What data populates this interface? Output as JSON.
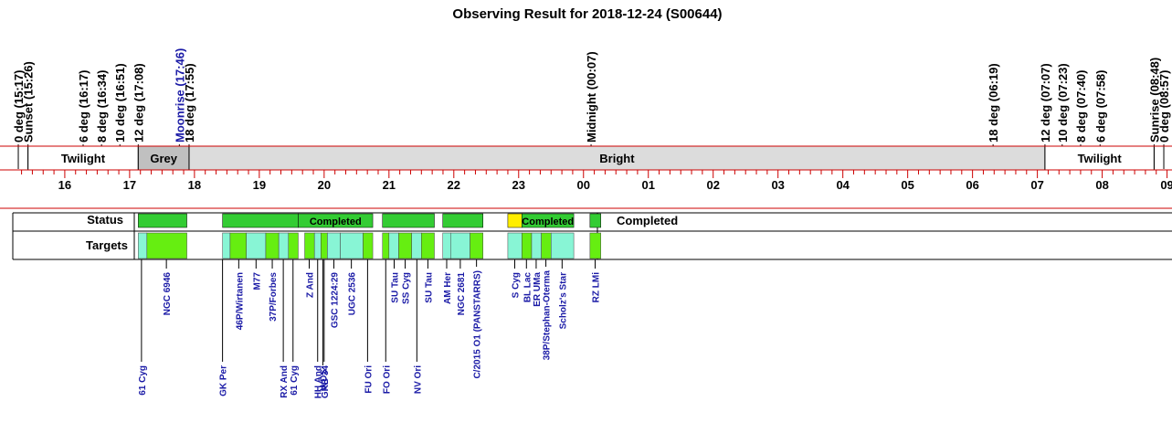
{
  "title": "Observing Result for 2018-12-24 (S00644)",
  "colors": {
    "bright": "#dcdcdc",
    "grey": "#c0c0c0",
    "twilight": "#ffffff",
    "axis_red": "#cc0000",
    "completed": "#33cc33",
    "target_a": "#88f5d5",
    "target_b": "#66ee11",
    "pending": "#ffee00",
    "moon_text": "#1a1aa6",
    "target_text": "#1a1aa6"
  },
  "events": [
    {
      "t": 15.283,
      "label": "0 deg (15:17)",
      "color": "black"
    },
    {
      "t": 15.433,
      "label": "Sunset (15:26)",
      "color": "black"
    },
    {
      "t": 16.283,
      "label": "6 deg (16:17)",
      "color": "black"
    },
    {
      "t": 16.567,
      "label": "8 deg (16:34)",
      "color": "black"
    },
    {
      "t": 16.85,
      "label": "10 deg (16:51)",
      "color": "black"
    },
    {
      "t": 17.133,
      "label": "12 deg (17:08)",
      "color": "black"
    },
    {
      "t": 17.767,
      "label": "Moonrise (17:46)",
      "color": "moon"
    },
    {
      "t": 17.917,
      "label": "18 deg (17:55)",
      "color": "black"
    },
    {
      "t": 24.117,
      "label": "Midnight (00:07)",
      "color": "black"
    },
    {
      "t": 30.317,
      "label": "18 deg (06:19)",
      "color": "black"
    },
    {
      "t": 31.117,
      "label": "12 deg (07:07)",
      "color": "black"
    },
    {
      "t": 31.383,
      "label": "10 deg (07:23)",
      "color": "black"
    },
    {
      "t": 31.667,
      "label": "8 deg (07:40)",
      "color": "black"
    },
    {
      "t": 31.967,
      "label": "6 deg (07:58)",
      "color": "black"
    },
    {
      "t": 32.8,
      "label": "Sunrise (08:48)",
      "color": "black"
    },
    {
      "t": 32.95,
      "label": "0 deg (08:57)",
      "color": "black"
    }
  ],
  "bands": [
    {
      "start": 15.433,
      "end": 17.133,
      "label": "Twilight",
      "kind": "twilight"
    },
    {
      "start": 17.133,
      "end": 17.917,
      "label": "Grey",
      "kind": "grey"
    },
    {
      "start": 17.917,
      "end": 31.117,
      "label": "Bright",
      "kind": "bright"
    },
    {
      "start": 31.117,
      "end": 32.8,
      "label": "Twilight",
      "kind": "twilight"
    }
  ],
  "hour_labels": [
    "16",
    "17",
    "18",
    "19",
    "20",
    "21",
    "22",
    "23",
    "00",
    "01",
    "02",
    "03",
    "04",
    "05",
    "06",
    "07",
    "08",
    "09"
  ],
  "rows": {
    "status_label": "Status",
    "targets_label": "Targets",
    "status_summary": "Completed"
  },
  "status_blocks": [
    {
      "start": 17.133,
      "end": 17.883,
      "kind": "completed",
      "text": ""
    },
    {
      "start": 18.433,
      "end": 19.6,
      "kind": "completed",
      "text": ""
    },
    {
      "start": 19.6,
      "end": 20.75,
      "kind": "completed",
      "text": "Completed"
    },
    {
      "start": 20.9,
      "end": 21.7,
      "kind": "completed",
      "text": ""
    },
    {
      "start": 21.83,
      "end": 22.45,
      "kind": "completed",
      "text": ""
    },
    {
      "start": 22.833,
      "end": 23.05,
      "kind": "pending",
      "text": ""
    },
    {
      "start": 23.05,
      "end": 23.85,
      "kind": "completed",
      "text": "Completed"
    },
    {
      "start": 24.1,
      "end": 24.267,
      "kind": "completed",
      "text": ""
    }
  ],
  "target_blocks": [
    {
      "start": 17.133,
      "end": 17.267,
      "kind": "a"
    },
    {
      "start": 17.267,
      "end": 17.883,
      "kind": "b"
    },
    {
      "start": 18.433,
      "end": 18.55,
      "kind": "a"
    },
    {
      "start": 18.55,
      "end": 18.8,
      "kind": "b"
    },
    {
      "start": 18.8,
      "end": 19.1,
      "kind": "a"
    },
    {
      "start": 19.1,
      "end": 19.3,
      "kind": "b"
    },
    {
      "start": 19.3,
      "end": 19.45,
      "kind": "a"
    },
    {
      "start": 19.45,
      "end": 19.6,
      "kind": "b"
    },
    {
      "start": 19.7,
      "end": 19.85,
      "kind": "b"
    },
    {
      "start": 19.85,
      "end": 19.95,
      "kind": "a"
    },
    {
      "start": 19.95,
      "end": 20.05,
      "kind": "b"
    },
    {
      "start": 20.05,
      "end": 20.25,
      "kind": "a"
    },
    {
      "start": 20.25,
      "end": 20.6,
      "kind": "a"
    },
    {
      "start": 20.6,
      "end": 20.75,
      "kind": "b"
    },
    {
      "start": 20.9,
      "end": 21.0,
      "kind": "b"
    },
    {
      "start": 21.0,
      "end": 21.15,
      "kind": "a"
    },
    {
      "start": 21.15,
      "end": 21.35,
      "kind": "b"
    },
    {
      "start": 21.35,
      "end": 21.5,
      "kind": "a"
    },
    {
      "start": 21.5,
      "end": 21.7,
      "kind": "b"
    },
    {
      "start": 21.83,
      "end": 21.95,
      "kind": "a"
    },
    {
      "start": 21.95,
      "end": 22.25,
      "kind": "a"
    },
    {
      "start": 22.25,
      "end": 22.45,
      "kind": "b"
    },
    {
      "start": 22.833,
      "end": 23.05,
      "kind": "a"
    },
    {
      "start": 23.05,
      "end": 23.2,
      "kind": "b"
    },
    {
      "start": 23.2,
      "end": 23.35,
      "kind": "a"
    },
    {
      "start": 23.35,
      "end": 23.5,
      "kind": "b"
    },
    {
      "start": 23.5,
      "end": 23.85,
      "kind": "a"
    },
    {
      "start": 24.1,
      "end": 24.267,
      "kind": "b"
    }
  ],
  "targets": [
    {
      "t": 17.183,
      "name": "61 Cyg",
      "pos": "low"
    },
    {
      "t": 17.567,
      "name": "NGC 6946",
      "pos": "high"
    },
    {
      "t": 18.433,
      "name": "GK Per",
      "pos": "low"
    },
    {
      "t": 18.683,
      "name": "46P/Wirtanen",
      "pos": "high"
    },
    {
      "t": 18.95,
      "name": "M77",
      "pos": "high"
    },
    {
      "t": 19.2,
      "name": "37P/Forbes",
      "pos": "high"
    },
    {
      "t": 19.37,
      "name": "RX And",
      "pos": "low"
    },
    {
      "t": 19.52,
      "name": "61 Cyg",
      "pos": "low"
    },
    {
      "t": 19.77,
      "name": "Z And",
      "pos": "high"
    },
    {
      "t": 19.9,
      "name": "HH And",
      "pos": "low"
    },
    {
      "t": 20.0,
      "name": "GRB 34",
      "pos": "low"
    },
    {
      "t": 19.98,
      "name": "WDS",
      "pos": "lowest"
    },
    {
      "t": 20.15,
      "name": "GSC 1224:29",
      "pos": "high"
    },
    {
      "t": 20.42,
      "name": "UGC 2536",
      "pos": "high"
    },
    {
      "t": 20.67,
      "name": "FU Ori",
      "pos": "low"
    },
    {
      "t": 20.95,
      "name": "FO Ori",
      "pos": "low"
    },
    {
      "t": 21.08,
      "name": "SU Tau",
      "pos": "high"
    },
    {
      "t": 21.25,
      "name": "SS Cyg",
      "pos": "high"
    },
    {
      "t": 21.43,
      "name": "NV Ori",
      "pos": "low"
    },
    {
      "t": 21.6,
      "name": "SU Tau",
      "pos": "high"
    },
    {
      "t": 21.89,
      "name": "AM Her",
      "pos": "high"
    },
    {
      "t": 22.1,
      "name": "NGC 2681",
      "pos": "high"
    },
    {
      "t": 22.35,
      "name": "C/2015 O1 (PANSTARRS)",
      "pos": "mid"
    },
    {
      "t": 22.94,
      "name": "S Cyg",
      "pos": "high"
    },
    {
      "t": 23.12,
      "name": "BL Lac",
      "pos": "high"
    },
    {
      "t": 23.27,
      "name": "ER UMa",
      "pos": "high"
    },
    {
      "t": 23.42,
      "name": "38P/Stephan-Oterma",
      "pos": "mid"
    },
    {
      "t": 23.67,
      "name": "Scholz's Star",
      "pos": "high"
    },
    {
      "t": 24.18,
      "name": "RZ LMi",
      "pos": "high"
    }
  ]
}
